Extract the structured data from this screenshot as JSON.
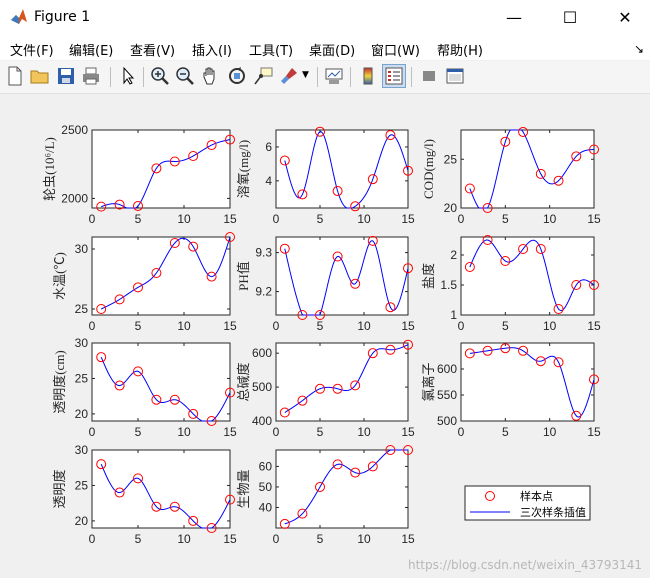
{
  "window": {
    "title": "Figure 1",
    "minimize": "—",
    "maximize": "☐",
    "close": "✕"
  },
  "menu": [
    "文件(F)",
    "编辑(E)",
    "查看(V)",
    "插入(I)",
    "工具(T)",
    "桌面(D)",
    "窗口(W)",
    "帮助(H)"
  ],
  "toolbar_icons": [
    "new-figure-icon",
    "open-file-icon",
    "save-icon",
    "print-icon",
    "pointer-icon",
    "zoom-in-icon",
    "zoom-out-icon",
    "pan-icon",
    "rotate-3d-icon",
    "data-cursor-icon",
    "brush-icon",
    "link-plot-icon",
    "colorbar-icon",
    "legend-icon",
    "hide-plot-tools-icon",
    "show-plot-tools-icon"
  ],
  "watermark": "https://blog.csdn.net/weixin_43793141",
  "legend": {
    "sample": "样本点",
    "spline": "三次样条插值"
  },
  "colors": {
    "marker": "#ff0000",
    "line": "#0000ff"
  },
  "chart_data": [
    {
      "type": "line",
      "ylabel": "轮虫(10⁶/L)",
      "xlim": [
        0,
        15
      ],
      "ylim": [
        1930,
        2500
      ],
      "xticks": [
        "0",
        "5",
        "10",
        "15"
      ],
      "yticks": [
        {
          "v": 2000,
          "t": "2000"
        },
        {
          "v": 2500,
          "t": "2500"
        }
      ],
      "x": [
        1,
        3,
        5,
        7,
        9,
        11,
        13,
        15
      ],
      "y": [
        1940,
        1955,
        1945,
        2220,
        2270,
        2310,
        2390,
        2430
      ]
    },
    {
      "type": "line",
      "ylabel": "溶氧(mg/l)",
      "xlim": [
        0,
        15
      ],
      "ylim": [
        2.4,
        7.0
      ],
      "xticks": [
        "0",
        "5",
        "10",
        "15"
      ],
      "yticks": [
        {
          "v": 4,
          "t": "4"
        },
        {
          "v": 6,
          "t": "6"
        }
      ],
      "x": [
        1,
        3,
        5,
        7,
        9,
        11,
        13,
        15
      ],
      "y": [
        5.2,
        3.2,
        6.9,
        3.4,
        2.5,
        4.1,
        6.7,
        4.6
      ]
    },
    {
      "type": "line",
      "ylabel": "COD(mg/l)",
      "xlim": [
        0,
        15
      ],
      "ylim": [
        20,
        28
      ],
      "xticks": [
        "0",
        "5",
        "10",
        "15"
      ],
      "yticks": [
        {
          "v": 20,
          "t": "20"
        },
        {
          "v": 25,
          "t": "25"
        }
      ],
      "x": [
        1,
        3,
        5,
        7,
        9,
        11,
        13,
        15
      ],
      "y": [
        22,
        20,
        26.8,
        27.8,
        23.5,
        22.8,
        25.3,
        26
      ]
    },
    {
      "type": "line",
      "ylabel": "水温(℃)",
      "xlim": [
        0,
        15
      ],
      "ylim": [
        24.5,
        31
      ],
      "xticks": [
        "0",
        "5",
        "10",
        "15"
      ],
      "yticks": [
        {
          "v": 25,
          "t": "25"
        },
        {
          "v": 30,
          "t": "30"
        }
      ],
      "x": [
        1,
        3,
        5,
        7,
        9,
        11,
        13,
        15
      ],
      "y": [
        25,
        25.8,
        26.8,
        28,
        30.5,
        30.2,
        27.7,
        31
      ]
    },
    {
      "type": "line",
      "ylabel": "PH值",
      "xlim": [
        0,
        15
      ],
      "ylim": [
        9.14,
        9.34
      ],
      "xticks": [
        "0",
        "5",
        "10",
        "15"
      ],
      "yticks": [
        {
          "v": 9.2,
          "t": "9.2"
        },
        {
          "v": 9.3,
          "t": "9.3"
        }
      ],
      "x": [
        1,
        3,
        5,
        7,
        9,
        11,
        13,
        15
      ],
      "y": [
        9.31,
        9.14,
        9.14,
        9.29,
        9.22,
        9.33,
        9.16,
        9.26
      ]
    },
    {
      "type": "line",
      "ylabel": "盐度",
      "xlim": [
        0,
        15
      ],
      "ylim": [
        1,
        2.3
      ],
      "xticks": [
        "0",
        "5",
        "10",
        "15"
      ],
      "yticks": [
        {
          "v": 1,
          "t": "1"
        },
        {
          "v": 1.5,
          "t": "1.5"
        },
        {
          "v": 2,
          "t": "2"
        }
      ],
      "x": [
        1,
        3,
        5,
        7,
        9,
        11,
        13,
        15
      ],
      "y": [
        1.8,
        2.25,
        1.9,
        2.1,
        2.1,
        1.1,
        1.5,
        1.5
      ]
    },
    {
      "type": "line",
      "ylabel": "透明度(cm)",
      "xlim": [
        0,
        15
      ],
      "ylim": [
        19,
        30
      ],
      "xticks": [
        "0",
        "5",
        "10",
        "15"
      ],
      "yticks": [
        {
          "v": 20,
          "t": "20"
        },
        {
          "v": 25,
          "t": "25"
        },
        {
          "v": 30,
          "t": "30"
        }
      ],
      "x": [
        1,
        3,
        5,
        7,
        9,
        11,
        13,
        15
      ],
      "y": [
        28,
        24,
        26,
        22,
        22,
        20,
        19,
        23
      ]
    },
    {
      "type": "line",
      "ylabel": "总碱度",
      "xlim": [
        0,
        15
      ],
      "ylim": [
        400,
        630
      ],
      "xticks": [
        "0",
        "5",
        "10",
        "15"
      ],
      "yticks": [
        {
          "v": 400,
          "t": "400"
        },
        {
          "v": 500,
          "t": "500"
        },
        {
          "v": 600,
          "t": "600"
        }
      ],
      "x": [
        1,
        3,
        5,
        7,
        9,
        11,
        13,
        15
      ],
      "y": [
        425,
        460,
        495,
        495,
        505,
        600,
        610,
        625
      ]
    },
    {
      "type": "line",
      "ylabel": "氯离子",
      "xlim": [
        0,
        15
      ],
      "ylim": [
        500,
        650
      ],
      "xticks": [
        "0",
        "5",
        "10",
        "15"
      ],
      "yticks": [
        {
          "v": 500,
          "t": "500"
        },
        {
          "v": 550,
          "t": "550"
        },
        {
          "v": 600,
          "t": "600"
        }
      ],
      "x": [
        1,
        3,
        5,
        7,
        9,
        11,
        13,
        15
      ],
      "y": [
        630,
        635,
        640,
        635,
        615,
        613,
        510,
        580
      ]
    },
    {
      "type": "line",
      "ylabel": "透明度",
      "xlim": [
        0,
        15
      ],
      "ylim": [
        19,
        30
      ],
      "xticks": [
        "0",
        "5",
        "10",
        "15"
      ],
      "yticks": [
        {
          "v": 20,
          "t": "20"
        },
        {
          "v": 25,
          "t": "25"
        },
        {
          "v": 30,
          "t": "30"
        }
      ],
      "x": [
        1,
        3,
        5,
        7,
        9,
        11,
        13,
        15
      ],
      "y": [
        28,
        24,
        26,
        22,
        22,
        20,
        19,
        23
      ]
    },
    {
      "type": "line",
      "ylabel": "生物量",
      "xlim": [
        0,
        15
      ],
      "ylim": [
        30,
        68
      ],
      "xticks": [
        "0",
        "5",
        "10",
        "15"
      ],
      "yticks": [
        {
          "v": 40,
          "t": "40"
        },
        {
          "v": 50,
          "t": "50"
        },
        {
          "v": 60,
          "t": "60"
        }
      ],
      "x": [
        1,
        3,
        5,
        7,
        9,
        11,
        13,
        15
      ],
      "y": [
        32,
        37,
        50,
        61,
        57,
        60,
        68,
        68
      ]
    }
  ]
}
